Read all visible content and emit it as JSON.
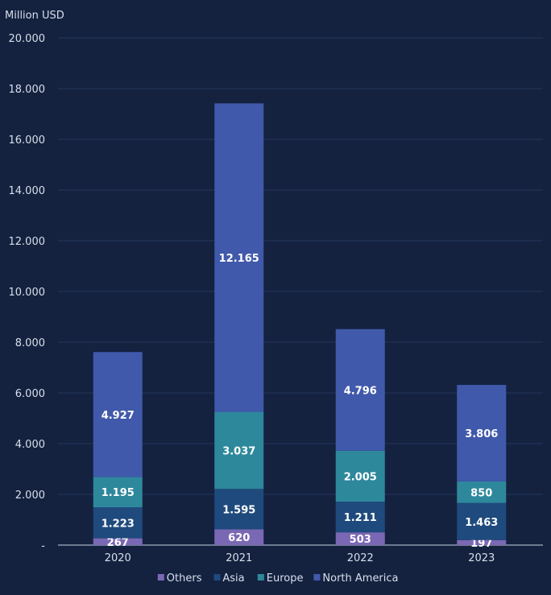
{
  "chart_data": {
    "type": "bar",
    "stacked": true,
    "unit_label": "Million USD",
    "categories": [
      "2020",
      "2021",
      "2022",
      "2023"
    ],
    "series": [
      {
        "name": "Others",
        "color": "#7b68b5",
        "values": [
          267,
          620,
          503,
          197
        ],
        "labels": [
          "267",
          "620",
          "503",
          "197"
        ]
      },
      {
        "name": "Asia",
        "color": "#1f4a7d",
        "values": [
          1223,
          1595,
          1211,
          1463
        ],
        "labels": [
          "1.223",
          "1.595",
          "1.211",
          "1.463"
        ]
      },
      {
        "name": "Europe",
        "color": "#2e889c",
        "values": [
          1195,
          3037,
          2005,
          850
        ],
        "labels": [
          "1.195",
          "3.037",
          "2.005",
          "850"
        ]
      },
      {
        "name": "North America",
        "color": "#4059ab",
        "values": [
          4927,
          12165,
          4796,
          3806
        ],
        "labels": [
          "4.927",
          "12.165",
          "4.796",
          "3.806"
        ]
      }
    ],
    "ylim": [
      0,
      20000
    ],
    "y_ticks": [
      0,
      2000,
      4000,
      6000,
      8000,
      10000,
      12000,
      14000,
      16000,
      18000,
      20000
    ],
    "y_tick_labels": [
      "-",
      "2.000",
      "4.000",
      "6.000",
      "8.000",
      "10.000",
      "12.000",
      "14.000",
      "16.000",
      "18.000",
      "20.000"
    ],
    "grid": true,
    "legend_position": "bottom"
  },
  "colors": {
    "background": "#142240",
    "grid": "#24365a",
    "axis": "#c9d1e0"
  }
}
